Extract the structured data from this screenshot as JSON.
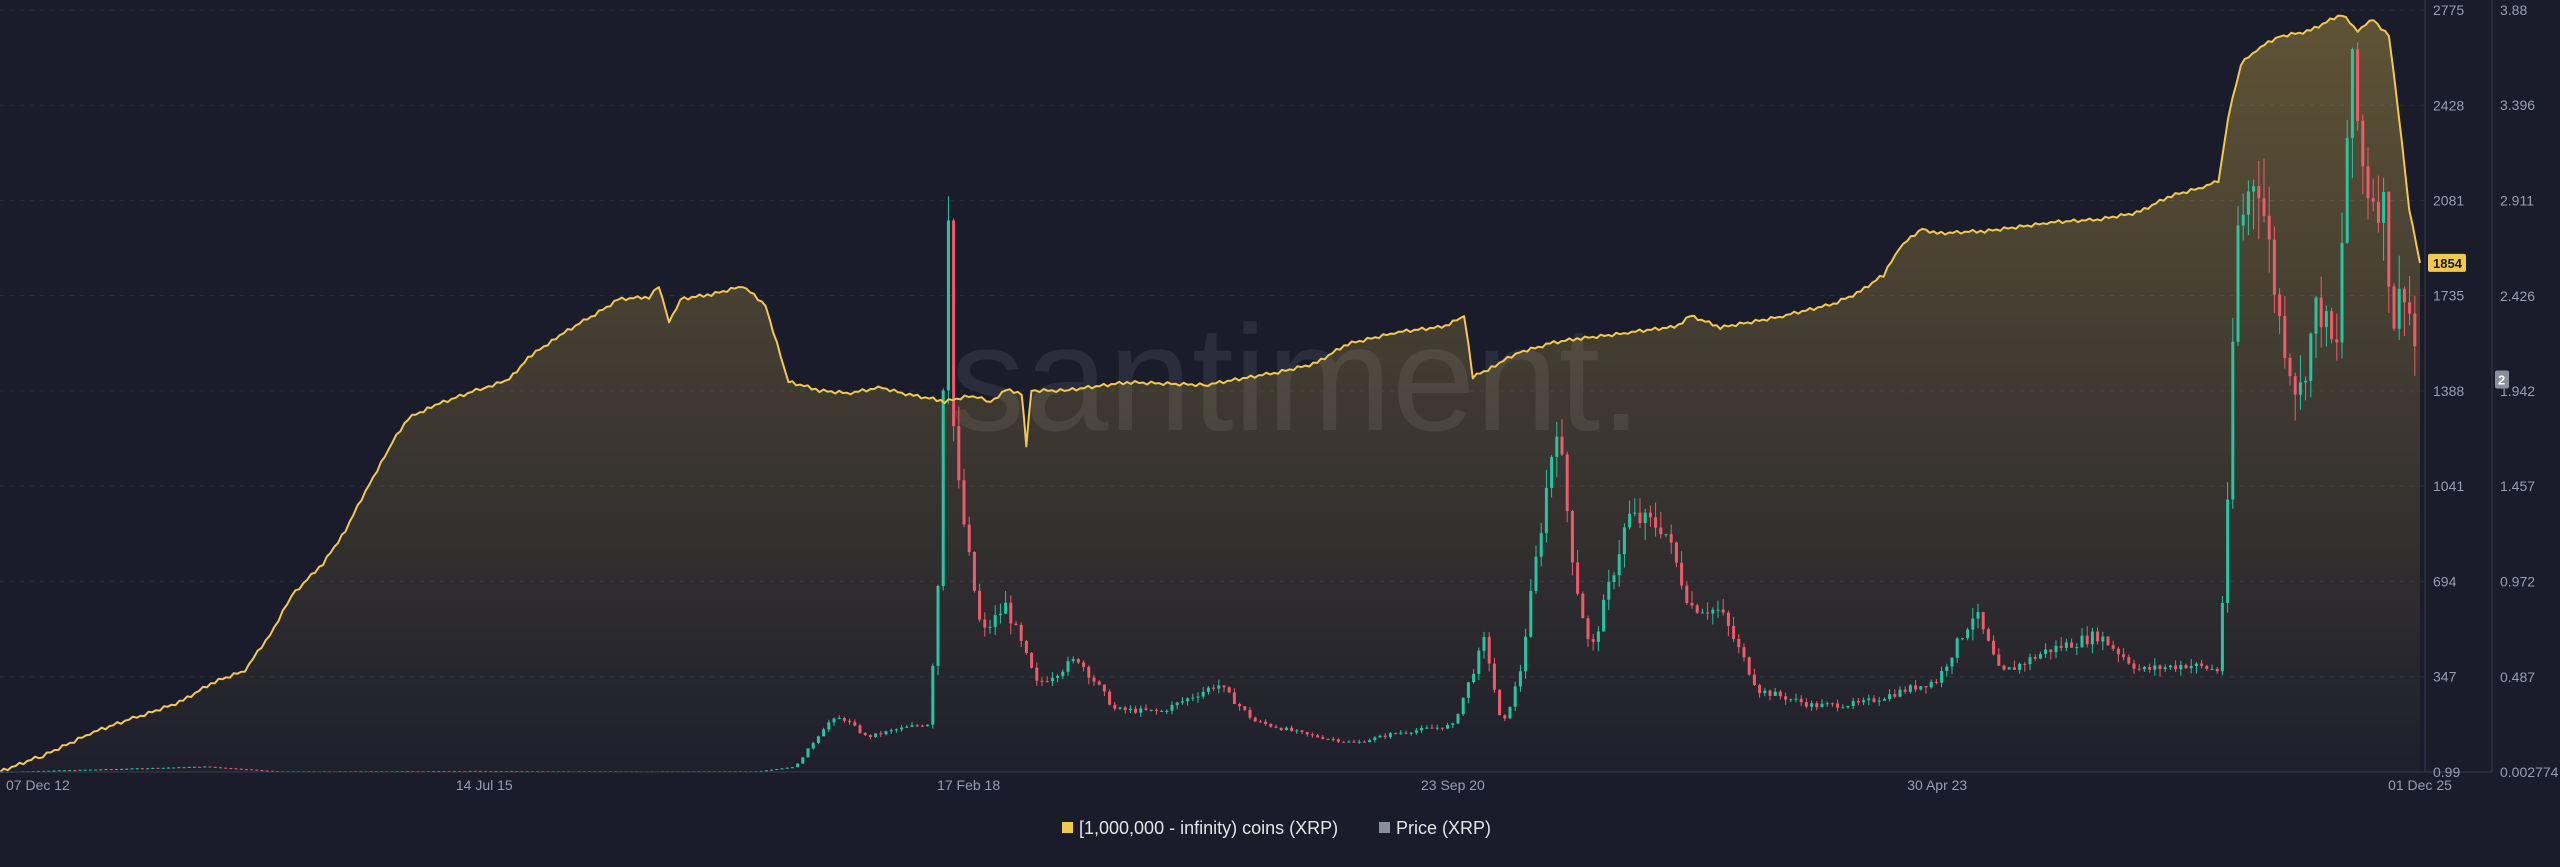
{
  "chart_data": {
    "type": "line",
    "watermark": "santiment.",
    "x_axis": {
      "start": "2012-12-07",
      "end": "2025-12-01",
      "tick_labels": [
        {
          "date": "2012-12-07",
          "label": "07 Dec 12"
        },
        {
          "date": "2015-07-14",
          "label": "14 Jul 15"
        },
        {
          "date": "2018-02-17",
          "label": "17 Feb 18"
        },
        {
          "date": "2020-09-23",
          "label": "23 Sep 20"
        },
        {
          "date": "2023-04-30",
          "label": "30 Apr 23"
        },
        {
          "date": "2025-12-01",
          "label": "01 Dec 25"
        }
      ]
    },
    "y_axis_left": {
      "ylim": [
        0,
        2775
      ],
      "tick_labels": [
        "2775",
        "2428",
        "2081",
        "1735",
        "1388",
        "1041",
        "694",
        "347",
        "0.99"
      ],
      "tick_values": [
        2775,
        2428,
        2081,
        1735,
        1388,
        1041,
        694,
        347,
        0
      ]
    },
    "y_axis_right": {
      "ylim": [
        0.002774,
        3.88
      ],
      "tick_labels": [
        "3.88",
        "3.396",
        "2.911",
        "2.426",
        "1.942",
        "1.457",
        "0.972",
        "0.487",
        "0.002774"
      ],
      "tick_values": [
        3.88,
        3.396,
        2.911,
        2.426,
        1.942,
        1.457,
        0.972,
        0.487,
        0.002774
      ]
    },
    "series": [
      {
        "name": "[1,000,000 - infinity) coins (XRP)",
        "color": "#f2c94c",
        "axis": "left",
        "style": "area-line",
        "last_value_badge": "1854",
        "points": [
          [
            "2012-12-07",
            0
          ],
          [
            "2013-03-01",
            60
          ],
          [
            "2013-06-01",
            140
          ],
          [
            "2013-09-01",
            200
          ],
          [
            "2013-12-01",
            260
          ],
          [
            "2014-02-01",
            330
          ],
          [
            "2014-04-01",
            370
          ],
          [
            "2014-05-20",
            500
          ],
          [
            "2014-07-01",
            640
          ],
          [
            "2014-09-01",
            760
          ],
          [
            "2014-10-15",
            880
          ],
          [
            "2014-12-01",
            1050
          ],
          [
            "2015-01-15",
            1200
          ],
          [
            "2015-02-15",
            1290
          ],
          [
            "2015-04-01",
            1330
          ],
          [
            "2015-07-14",
            1400
          ],
          [
            "2015-09-01",
            1430
          ],
          [
            "2015-10-15",
            1520
          ],
          [
            "2015-12-01",
            1580
          ],
          [
            "2016-02-01",
            1650
          ],
          [
            "2016-04-01",
            1720
          ],
          [
            "2016-06-01",
            1730
          ],
          [
            "2016-06-20",
            1770
          ],
          [
            "2016-07-10",
            1640
          ],
          [
            "2016-08-01",
            1720
          ],
          [
            "2016-10-01",
            1740
          ],
          [
            "2016-12-01",
            1770
          ],
          [
            "2017-01-15",
            1700
          ],
          [
            "2017-03-01",
            1420
          ],
          [
            "2017-05-01",
            1390
          ],
          [
            "2017-07-01",
            1380
          ],
          [
            "2017-09-01",
            1400
          ],
          [
            "2017-11-01",
            1370
          ],
          [
            "2018-01-01",
            1350
          ],
          [
            "2018-02-17",
            1370
          ],
          [
            "2018-04-01",
            1350
          ],
          [
            "2018-05-01",
            1390
          ],
          [
            "2018-06-01",
            1380
          ],
          [
            "2018-06-10",
            1190
          ],
          [
            "2018-06-20",
            1390
          ],
          [
            "2018-09-01",
            1390
          ],
          [
            "2019-01-01",
            1420
          ],
          [
            "2019-06-01",
            1410
          ],
          [
            "2019-10-01",
            1450
          ],
          [
            "2020-01-01",
            1490
          ],
          [
            "2020-03-01",
            1560
          ],
          [
            "2020-06-01",
            1600
          ],
          [
            "2020-09-01",
            1620
          ],
          [
            "2020-10-15",
            1660
          ],
          [
            "2020-11-01",
            1440
          ],
          [
            "2020-12-15",
            1480
          ],
          [
            "2021-02-01",
            1530
          ],
          [
            "2021-04-01",
            1560
          ],
          [
            "2021-06-01",
            1580
          ],
          [
            "2021-09-01",
            1600
          ],
          [
            "2021-12-01",
            1620
          ],
          [
            "2022-01-01",
            1660
          ],
          [
            "2022-03-01",
            1620
          ],
          [
            "2022-07-01",
            1660
          ],
          [
            "2022-10-01",
            1700
          ],
          [
            "2022-12-01",
            1750
          ],
          [
            "2023-01-15",
            1810
          ],
          [
            "2023-02-15",
            1910
          ],
          [
            "2023-04-01",
            1980
          ],
          [
            "2023-04-30",
            1960
          ],
          [
            "2023-08-01",
            1970
          ],
          [
            "2023-12-01",
            2000
          ],
          [
            "2024-03-01",
            2010
          ],
          [
            "2024-06-01",
            2040
          ],
          [
            "2024-08-01",
            2100
          ],
          [
            "2024-10-01",
            2130
          ],
          [
            "2024-11-01",
            2150
          ],
          [
            "2024-11-20",
            2380
          ],
          [
            "2024-12-15",
            2580
          ],
          [
            "2025-01-15",
            2630
          ],
          [
            "2025-03-01",
            2680
          ],
          [
            "2025-05-01",
            2700
          ],
          [
            "2025-07-01",
            2760
          ],
          [
            "2025-08-01",
            2700
          ],
          [
            "2025-09-01",
            2740
          ],
          [
            "2025-10-01",
            2680
          ],
          [
            "2025-10-20",
            2400
          ],
          [
            "2025-11-10",
            2050
          ],
          [
            "2025-12-01",
            1854
          ]
        ]
      },
      {
        "name": "Price (XRP)",
        "color": "#8b8e9d",
        "candle_up_color": "#26c6a1",
        "candle_down_color": "#ef5b6b",
        "axis": "right",
        "style": "candles",
        "last_value_badge": "2",
        "points": [
          [
            "2012-12-07",
            0.003
          ],
          [
            "2014-01-15",
            0.03
          ],
          [
            "2014-06-01",
            0.006
          ],
          [
            "2015-06-01",
            0.008
          ],
          [
            "2016-06-01",
            0.006
          ],
          [
            "2017-01-01",
            0.007
          ],
          [
            "2017-03-15",
            0.03
          ],
          [
            "2017-05-15",
            0.25
          ],
          [
            "2017-06-15",
            0.28
          ],
          [
            "2017-08-01",
            0.18
          ],
          [
            "2017-10-01",
            0.22
          ],
          [
            "2017-12-01",
            0.25
          ],
          [
            "2017-12-25",
            1.2
          ],
          [
            "2018-01-05",
            3.3
          ],
          [
            "2018-01-20",
            1.6
          ],
          [
            "2018-02-17",
            1.1
          ],
          [
            "2018-03-15",
            0.7
          ],
          [
            "2018-05-01",
            0.85
          ],
          [
            "2018-07-01",
            0.45
          ],
          [
            "2018-09-20",
            0.58
          ],
          [
            "2018-12-01",
            0.32
          ],
          [
            "2019-03-01",
            0.31
          ],
          [
            "2019-06-20",
            0.45
          ],
          [
            "2019-09-01",
            0.26
          ],
          [
            "2019-12-15",
            0.19
          ],
          [
            "2020-03-15",
            0.15
          ],
          [
            "2020-06-01",
            0.2
          ],
          [
            "2020-09-23",
            0.24
          ],
          [
            "2020-11-25",
            0.68
          ],
          [
            "2020-12-28",
            0.22
          ],
          [
            "2021-02-01",
            0.5
          ],
          [
            "2021-04-14",
            1.8
          ],
          [
            "2021-05-20",
            1.0
          ],
          [
            "2021-06-20",
            0.6
          ],
          [
            "2021-09-01",
            1.3
          ],
          [
            "2021-11-10",
            1.25
          ],
          [
            "2022-01-01",
            0.85
          ],
          [
            "2022-03-01",
            0.82
          ],
          [
            "2022-05-15",
            0.42
          ],
          [
            "2022-09-01",
            0.34
          ],
          [
            "2022-12-01",
            0.35
          ],
          [
            "2023-04-30",
            0.47
          ],
          [
            "2023-07-13",
            0.82
          ],
          [
            "2023-09-01",
            0.5
          ],
          [
            "2023-12-01",
            0.62
          ],
          [
            "2024-03-11",
            0.7
          ],
          [
            "2024-06-01",
            0.52
          ],
          [
            "2024-09-01",
            0.55
          ],
          [
            "2024-11-01",
            0.52
          ],
          [
            "2024-11-25",
            1.6
          ],
          [
            "2024-12-03",
            2.7
          ],
          [
            "2025-01-15",
            3.1
          ],
          [
            "2025-03-01",
            2.3
          ],
          [
            "2025-04-07",
            1.9
          ],
          [
            "2025-05-15",
            2.4
          ],
          [
            "2025-06-20",
            2.1
          ],
          [
            "2025-07-18",
            3.6
          ],
          [
            "2025-08-15",
            3.0
          ],
          [
            "2025-09-20",
            2.9
          ],
          [
            "2025-10-10",
            2.3
          ],
          [
            "2025-11-01",
            2.5
          ],
          [
            "2025-12-01",
            2.0
          ]
        ]
      }
    ],
    "legend": {
      "placement": "bottom-center",
      "items": [
        {
          "label": "[1,000,000 - infinity) coins (XRP)",
          "color": "#f2c94c"
        },
        {
          "label": "Price (XRP)",
          "color": "#8b8e9d"
        }
      ]
    },
    "grid": true
  }
}
